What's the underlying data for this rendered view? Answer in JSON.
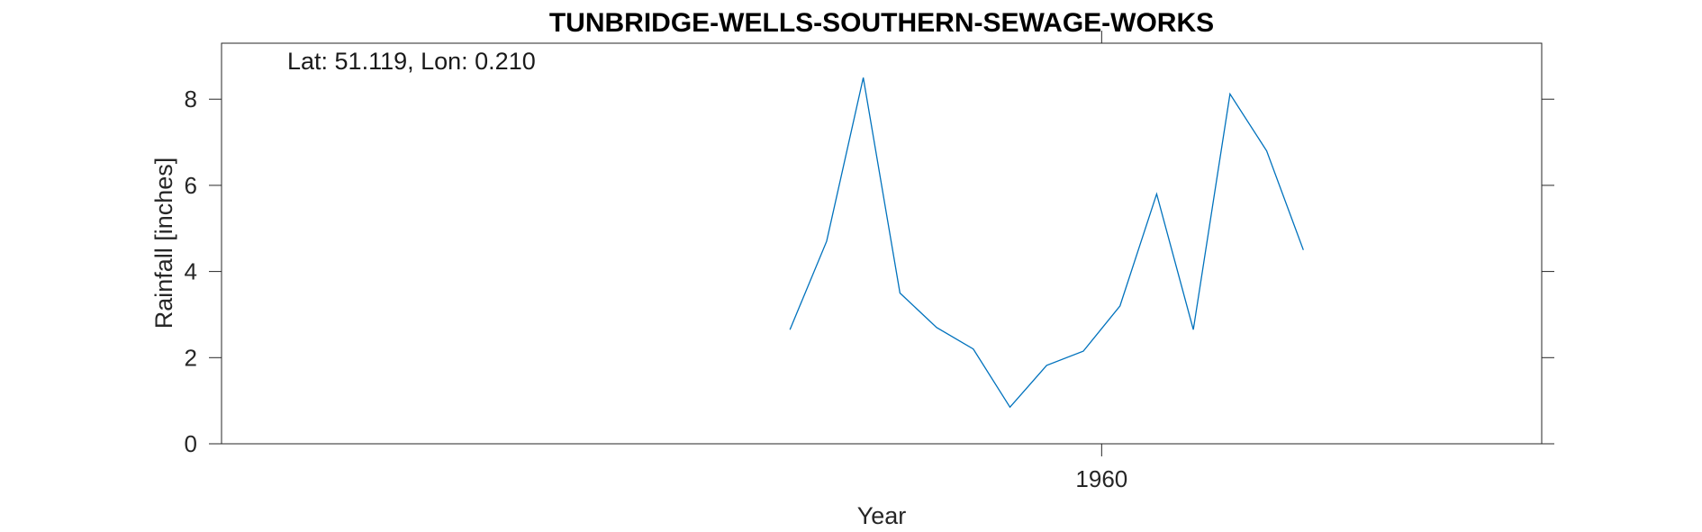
{
  "chart_data": {
    "type": "line",
    "title": "TUNBRIDGE-WELLS-SOUTHERN-SEWAGE-WORKS",
    "annotation": "Lat: 51.119, Lon: 0.210",
    "xlabel": "Year",
    "ylabel": "Rainfall [inches]",
    "xlim": [
      1936,
      1972
    ],
    "ylim": [
      0,
      9.3
    ],
    "x_ticks": [
      1960
    ],
    "x_tick_labels": [
      "1960"
    ],
    "y_ticks": [
      0,
      2,
      4,
      6,
      8
    ],
    "y_tick_labels": [
      "0",
      "2",
      "4",
      "6",
      "8"
    ],
    "grid": false,
    "legend": "none",
    "line_color": "#0072bd",
    "x": [
      1951.5,
      1952.5,
      1953.5,
      1954.5,
      1955.5,
      1956.5,
      1957.5,
      1958.5,
      1959.5,
      1960.5,
      1961.5,
      1962.5,
      1963.5,
      1964.5,
      1965.5
    ],
    "y": [
      2.65,
      4.7,
      8.5,
      3.5,
      2.7,
      2.2,
      0.85,
      1.82,
      2.15,
      3.2,
      5.8,
      2.65,
      8.12,
      6.8,
      4.5
    ]
  }
}
